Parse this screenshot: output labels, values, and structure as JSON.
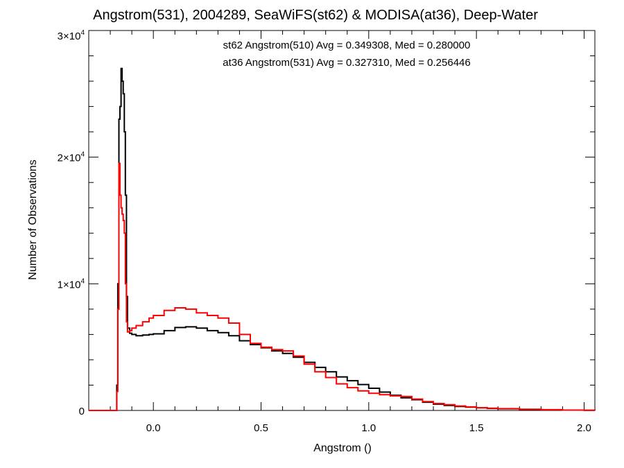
{
  "chart_data": {
    "type": "histogram-step",
    "title": "Angstrom(531), 2004289, SeaWiFS(st62) & MODISA(at36), Deep-Water",
    "xlabel": "Angstrom ()",
    "ylabel": "Number of Observations",
    "xlim": [
      -0.3,
      2.05
    ],
    "ylim": [
      0,
      30000
    ],
    "x_ticks": [
      0.0,
      0.5,
      1.0,
      1.5,
      2.0
    ],
    "x_tick_labels": [
      "0.0",
      "0.5",
      "1.0",
      "1.5",
      "2.0"
    ],
    "y_ticks": [
      0,
      10000,
      20000,
      30000
    ],
    "y_tick_labels": [
      {
        "mantissa": "0",
        "exp": ""
      },
      {
        "mantissa": "1×10",
        "exp": "4"
      },
      {
        "mantissa": "2×10",
        "exp": "4"
      },
      {
        "mantissa": "3×10",
        "exp": "4"
      }
    ],
    "annotations": [
      {
        "text": "st62 Angstrom(510) Avg = 0.349308, Med = 0.280000",
        "color": "#000000"
      },
      {
        "text": "at36 Angstrom(531) Avg = 0.327310, Med = 0.256446",
        "color": "#ff0000"
      }
    ],
    "series": [
      {
        "color": "#000000",
        "points": [
          [
            -0.3,
            0
          ],
          [
            -0.19,
            0
          ],
          [
            -0.17,
            2000
          ],
          [
            -0.165,
            10000
          ],
          [
            -0.16,
            23000
          ],
          [
            -0.155,
            24000
          ],
          [
            -0.15,
            27000
          ],
          [
            -0.145,
            26000
          ],
          [
            -0.14,
            25000
          ],
          [
            -0.135,
            22000
          ],
          [
            -0.13,
            17000
          ],
          [
            -0.125,
            9000
          ],
          [
            -0.12,
            6500
          ],
          [
            -0.11,
            6100
          ],
          [
            -0.1,
            6000
          ],
          [
            -0.08,
            5900
          ],
          [
            -0.05,
            5950
          ],
          [
            -0.02,
            6000
          ],
          [
            0.0,
            6050
          ],
          [
            0.05,
            6300
          ],
          [
            0.1,
            6550
          ],
          [
            0.15,
            6600
          ],
          [
            0.2,
            6500
          ],
          [
            0.25,
            6300
          ],
          [
            0.3,
            6150
          ],
          [
            0.35,
            5900
          ],
          [
            0.4,
            5500
          ],
          [
            0.45,
            5200
          ],
          [
            0.5,
            4950
          ],
          [
            0.55,
            4700
          ],
          [
            0.6,
            4500
          ],
          [
            0.65,
            4200
          ],
          [
            0.7,
            3800
          ],
          [
            0.75,
            3400
          ],
          [
            0.8,
            3050
          ],
          [
            0.85,
            2650
          ],
          [
            0.9,
            2350
          ],
          [
            0.95,
            2050
          ],
          [
            1.0,
            1750
          ],
          [
            1.05,
            1450
          ],
          [
            1.1,
            1200
          ],
          [
            1.15,
            1000
          ],
          [
            1.2,
            850
          ],
          [
            1.25,
            650
          ],
          [
            1.3,
            500
          ],
          [
            1.35,
            400
          ],
          [
            1.4,
            320
          ],
          [
            1.45,
            260
          ],
          [
            1.5,
            200
          ],
          [
            1.55,
            160
          ],
          [
            1.6,
            130
          ],
          [
            1.7,
            90
          ],
          [
            1.8,
            60
          ],
          [
            1.9,
            30
          ],
          [
            2.0,
            15
          ],
          [
            2.05,
            10
          ]
        ]
      },
      {
        "color": "#ff0000",
        "points": [
          [
            -0.3,
            0
          ],
          [
            -0.19,
            0
          ],
          [
            -0.17,
            1500
          ],
          [
            -0.165,
            8000
          ],
          [
            -0.16,
            19500
          ],
          [
            -0.155,
            17000
          ],
          [
            -0.15,
            16000
          ],
          [
            -0.145,
            15500
          ],
          [
            -0.14,
            15000
          ],
          [
            -0.135,
            14000
          ],
          [
            -0.13,
            10000
          ],
          [
            -0.125,
            7000
          ],
          [
            -0.12,
            6200
          ],
          [
            -0.11,
            6300
          ],
          [
            -0.1,
            6500
          ],
          [
            -0.08,
            6700
          ],
          [
            -0.05,
            7000
          ],
          [
            -0.02,
            7300
          ],
          [
            0.0,
            7500
          ],
          [
            0.05,
            7900
          ],
          [
            0.1,
            8100
          ],
          [
            0.15,
            8000
          ],
          [
            0.2,
            7700
          ],
          [
            0.25,
            7500
          ],
          [
            0.3,
            7300
          ],
          [
            0.35,
            6900
          ],
          [
            0.4,
            6000
          ],
          [
            0.45,
            5300
          ],
          [
            0.5,
            5000
          ],
          [
            0.55,
            4800
          ],
          [
            0.6,
            4700
          ],
          [
            0.65,
            4300
          ],
          [
            0.7,
            3650
          ],
          [
            0.75,
            3050
          ],
          [
            0.8,
            2600
          ],
          [
            0.85,
            2100
          ],
          [
            0.9,
            1800
          ],
          [
            0.95,
            1550
          ],
          [
            1.0,
            1350
          ],
          [
            1.05,
            1250
          ],
          [
            1.1,
            1150
          ],
          [
            1.15,
            1100
          ],
          [
            1.2,
            900
          ],
          [
            1.25,
            700
          ],
          [
            1.3,
            550
          ],
          [
            1.35,
            450
          ],
          [
            1.4,
            350
          ],
          [
            1.45,
            280
          ],
          [
            1.5,
            220
          ],
          [
            1.55,
            180
          ],
          [
            1.6,
            140
          ],
          [
            1.7,
            90
          ],
          [
            1.8,
            55
          ],
          [
            1.9,
            25
          ],
          [
            2.0,
            10
          ],
          [
            2.05,
            5
          ]
        ]
      }
    ]
  }
}
